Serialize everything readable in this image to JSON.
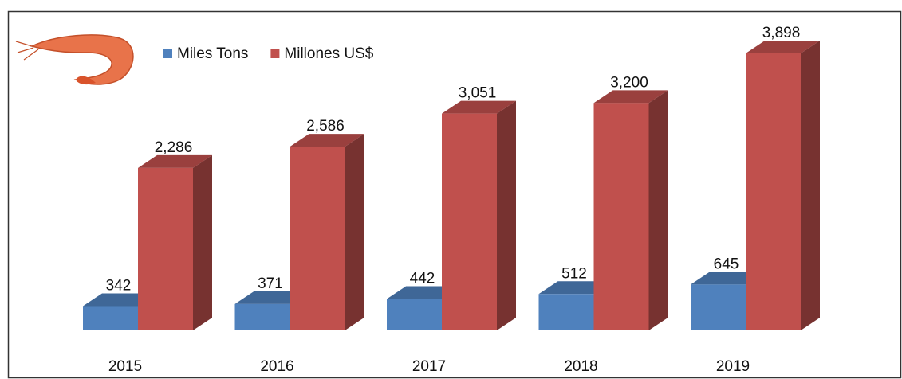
{
  "chart_data": {
    "type": "bar3d",
    "categories": [
      "2015",
      "2016",
      "2017",
      "2018",
      "2019"
    ],
    "series": [
      {
        "name": "Miles Tons",
        "color": "#4f81bd",
        "values": [
          342,
          371,
          442,
          512,
          645
        ]
      },
      {
        "name": "Millones US$",
        "color": "#c0504d",
        "values": [
          2286,
          2586,
          3051,
          3200,
          3898
        ],
        "value_labels": [
          "2,286",
          "2,586",
          "3,051",
          "3,200",
          "3,898"
        ]
      }
    ]
  }
}
